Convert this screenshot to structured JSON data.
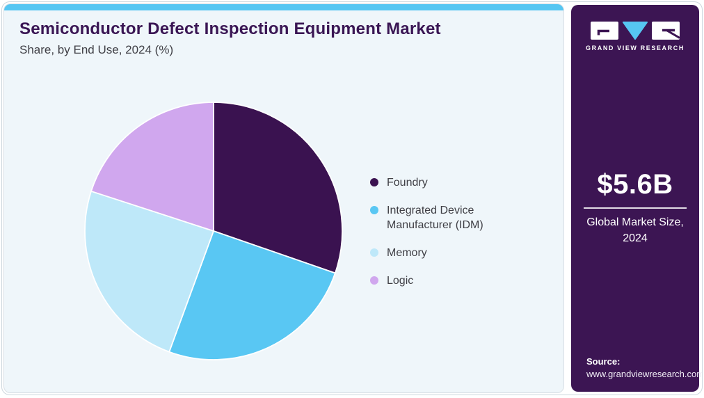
{
  "header": {
    "title": "Semiconductor Defect Inspection Equipment Market",
    "subtitle": "Share, by End Use, 2024 (%)"
  },
  "chart_data": {
    "type": "pie",
    "title": "Semiconductor Defect Inspection Equipment Market Share, by End Use, 2024 (%)",
    "start_angle_deg": 0,
    "direction": "clockwise",
    "legend_position": "right",
    "data_labels_shown": false,
    "note": "No percentage labels shown on chart; values estimated from slice arc angles",
    "segments": [
      {
        "label": "Foundry",
        "value": 30.3,
        "color": "#3A1250"
      },
      {
        "label": "Integrated Device Manufacturer (IDM)",
        "value": 25.3,
        "color": "#59C7F3"
      },
      {
        "label": "Memory",
        "value": 24.4,
        "color": "#BEE8F9"
      },
      {
        "label": "Logic",
        "value": 20.0,
        "color": "#D0A7EE"
      }
    ]
  },
  "sidebar": {
    "logo_text": "GRAND VIEW RESEARCH",
    "market_size": "$5.6B",
    "market_label": "Global Market Size, 2024",
    "source_label": "Source:",
    "source_url": "www.grandviewresearch.com"
  },
  "colors": {
    "accent_blue": "#56C6F2",
    "panel_bg": "#EFF6FA",
    "sidebar_bg": "#3C1553",
    "title": "#3A1654",
    "text": "#3F3F45",
    "foundry": "#3A1250",
    "idm": "#59C7F3",
    "memory": "#BEE8F9",
    "logic": "#D0A7EE"
  }
}
